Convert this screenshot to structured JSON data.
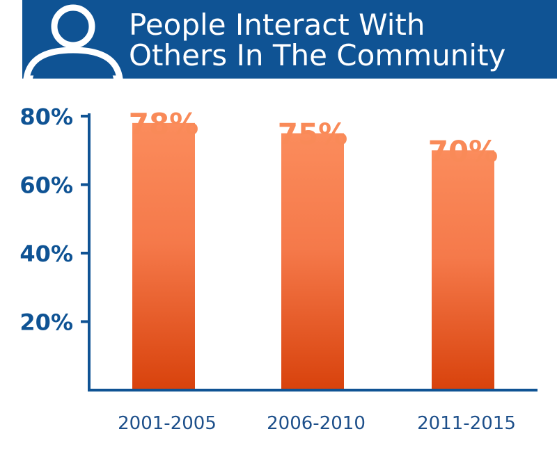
{
  "title": {
    "line1": "People Interact With",
    "line2": "Others In The Community"
  },
  "icons": {
    "header": "person-icon"
  },
  "colors": {
    "header_bg": "#0f5394",
    "axis": "#0f5394",
    "bar_top": "#fb8c5c",
    "bar_bottom": "#d8420c",
    "value_label": "#f98a58",
    "tick_label": "#0f5394",
    "category_label": "#1d4f8a"
  },
  "chart_data": {
    "type": "bar",
    "categories": [
      "2001-2005",
      "2006-2010",
      "2011-2015"
    ],
    "values": [
      78,
      75,
      70
    ],
    "value_labels": [
      "78%",
      "75%",
      "70%"
    ],
    "yticks": [
      20,
      40,
      60,
      80
    ],
    "ytick_labels": [
      "20%",
      "40%",
      "60%",
      "80%"
    ],
    "ylim": [
      0,
      80
    ],
    "title": "People Interact With Others In The Community",
    "xlabel": "",
    "ylabel": "",
    "grid": false,
    "legend": "none"
  }
}
